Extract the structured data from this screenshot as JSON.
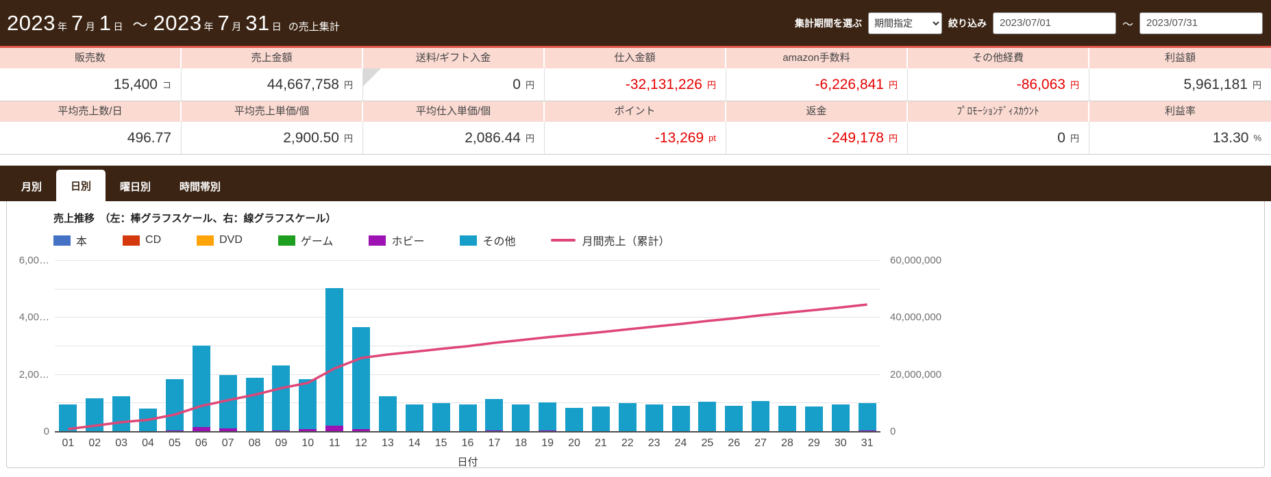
{
  "colors": {
    "header_brown": "#3b2413",
    "accent_red": "#e2564a",
    "table_header_pink": "#fbdad2",
    "negative_red": "#e60000",
    "bar_other": "#189fc9",
    "bar_hobby": "#9c12b2",
    "line_pink": "#de4677"
  },
  "header": {
    "title_segments": [
      {
        "text": "2023",
        "style": "num"
      },
      {
        "text": "年",
        "style": "unit"
      },
      {
        "text": "7",
        "style": "num"
      },
      {
        "text": "月",
        "style": "unit"
      },
      {
        "text": "1",
        "style": "num"
      },
      {
        "text": "日",
        "style": "unit"
      },
      {
        "text": "～",
        "style": "sep"
      },
      {
        "text": "2023",
        "style": "num"
      },
      {
        "text": "年",
        "style": "unit"
      },
      {
        "text": "7",
        "style": "num"
      },
      {
        "text": "月",
        "style": "unit"
      },
      {
        "text": "31",
        "style": "num"
      },
      {
        "text": "日",
        "style": "unit"
      },
      {
        "text": "の売上集計",
        "style": "suffix"
      }
    ],
    "period_label": "集計期間を選ぶ",
    "period_select_value": "期間指定",
    "filter_label": "絞り込み",
    "date_from": "2023/07/01",
    "date_separator": "～",
    "date_to": "2023/07/31"
  },
  "summary_table": {
    "rows": [
      {
        "headers": [
          "販売数",
          "売上金額",
          "送料/ギフト入金",
          "仕入金額",
          "amazon手数料",
          "その他経費",
          "利益額"
        ],
        "values": [
          {
            "value": "15,400",
            "unit": "コ"
          },
          {
            "value": "44,667,758",
            "unit": "円"
          },
          {
            "value": "0",
            "unit": "円",
            "notch": true
          },
          {
            "value": "-32,131,226",
            "unit": "円",
            "negative": true
          },
          {
            "value": "-6,226,841",
            "unit": "円",
            "negative": true
          },
          {
            "value": "-86,063",
            "unit": "円",
            "negative": true
          },
          {
            "value": "5,961,181",
            "unit": "円"
          }
        ]
      },
      {
        "headers": [
          "平均売上数/日",
          "平均売上単価/個",
          "平均仕入単価/個",
          "ポイント",
          "返金",
          "ﾌﾟﾛﾓｰｼｮﾝﾃﾞｨｽｶｳﾝﾄ",
          "利益率"
        ],
        "values": [
          {
            "value": "496.77",
            "unit": ""
          },
          {
            "value": "2,900.50",
            "unit": "円"
          },
          {
            "value": "2,086.44",
            "unit": "円"
          },
          {
            "value": "-13,269",
            "unit": "pt",
            "negative": true
          },
          {
            "value": "-249,178",
            "unit": "円",
            "negative": true
          },
          {
            "value": "0",
            "unit": "円"
          },
          {
            "value": "13.30",
            "unit": "%"
          }
        ]
      }
    ]
  },
  "tabs": {
    "items": [
      "月別",
      "日別",
      "曜日別",
      "時間帯別"
    ],
    "active_index": 1
  },
  "chart": {
    "title": "売上推移　（左：棒グラフスケール、右：線グラフスケール）",
    "x_axis_title": "日付"
  },
  "chart_data": {
    "type": "bar",
    "subtype": "stacked-bar-with-cumulative-line",
    "title": "売上推移　（左：棒グラフスケール、右：線グラフスケール）",
    "xlabel": "日付",
    "categories": [
      "01",
      "02",
      "03",
      "04",
      "05",
      "06",
      "07",
      "08",
      "09",
      "10",
      "11",
      "12",
      "13",
      "14",
      "15",
      "16",
      "17",
      "18",
      "19",
      "20",
      "21",
      "22",
      "23",
      "24",
      "25",
      "26",
      "27",
      "28",
      "29",
      "30",
      "31"
    ],
    "series": [
      {
        "name": "本",
        "color": "#4472c4",
        "values": [
          0,
          0,
          0,
          0,
          0,
          0,
          0,
          0,
          0,
          0,
          0,
          0,
          0,
          0,
          0,
          0,
          0,
          0,
          0,
          0,
          0,
          0,
          0,
          0,
          0,
          0,
          0,
          0,
          0,
          0,
          0
        ]
      },
      {
        "name": "CD",
        "color": "#d4380d",
        "values": [
          0,
          0,
          0,
          0,
          0,
          0,
          0,
          0,
          0,
          0,
          0,
          0,
          0,
          0,
          0,
          0,
          0,
          0,
          0,
          0,
          0,
          0,
          0,
          0,
          0,
          0,
          0,
          0,
          0,
          0,
          0
        ]
      },
      {
        "name": "DVD",
        "color": "#ffa408",
        "values": [
          0,
          0,
          0,
          0,
          0,
          0,
          0,
          0,
          0,
          0,
          0,
          0,
          0,
          0,
          0,
          0,
          0,
          0,
          0,
          0,
          0,
          0,
          0,
          0,
          0,
          0,
          0,
          0,
          0,
          0,
          0
        ]
      },
      {
        "name": "ゲーム",
        "color": "#1e9e1e",
        "values": [
          0,
          0,
          0,
          0,
          0,
          0,
          0,
          0,
          0,
          0,
          0,
          0,
          0,
          0,
          0,
          0,
          0,
          0,
          0,
          0,
          0,
          0,
          0,
          0,
          0,
          0,
          0,
          0,
          0,
          0,
          0
        ]
      },
      {
        "name": "ホビー",
        "color": "#9c12b2",
        "values": [
          0,
          0,
          0,
          0,
          40000,
          160000,
          120000,
          30000,
          50000,
          100000,
          220000,
          100000,
          30000,
          0,
          20000,
          30000,
          40000,
          0,
          50000,
          0,
          30000,
          0,
          0,
          0,
          0,
          0,
          30000,
          0,
          30000,
          0,
          40000
        ]
      },
      {
        "name": "その他",
        "color": "#189fc9",
        "values": [
          950000,
          1180000,
          1260000,
          820000,
          1810000,
          2860000,
          1880000,
          1870000,
          2280000,
          1750000,
          4830000,
          3570000,
          1220000,
          950000,
          980000,
          920000,
          1120000,
          970000,
          990000,
          850000,
          870000,
          1000000,
          960000,
          910000,
          1050000,
          910000,
          1060000,
          920000,
          870000,
          950000,
          960000
        ]
      }
    ],
    "line_series": {
      "name": "月間売上（累計）",
      "color": "#de4677",
      "axis": "right",
      "values": [
        950000,
        2130000,
        3390000,
        4210000,
        6060000,
        9080000,
        11080000,
        12980000,
        15310000,
        17160000,
        22210000,
        25880000,
        27130000,
        28080000,
        29080000,
        30030000,
        31190000,
        32160000,
        33200000,
        34050000,
        34950000,
        35950000,
        36910000,
        37820000,
        38870000,
        39780000,
        40870000,
        41790000,
        42690000,
        43640000,
        44640000
      ]
    },
    "left_axis": {
      "min": 0,
      "max": 6000000,
      "grid_interval": 1000000,
      "ticks": [
        6000000,
        4000000,
        2000000,
        0
      ],
      "tick_labels": [
        "6,00…",
        "4,00…",
        "2,00…",
        "0"
      ]
    },
    "right_axis": {
      "min": 0,
      "max": 60000000,
      "ticks": [
        60000000,
        40000000,
        20000000,
        0
      ],
      "tick_labels": [
        "60,000,000",
        "40,000,000",
        "20,000,000",
        "0"
      ]
    },
    "legend_position": "top",
    "grid": true
  }
}
